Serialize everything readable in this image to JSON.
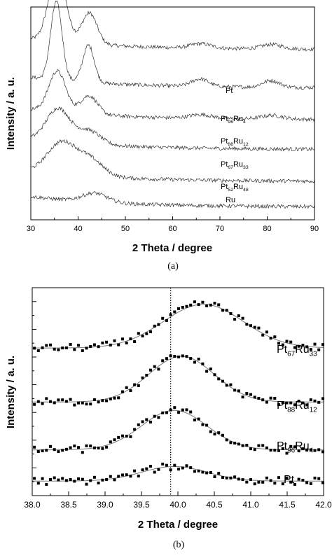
{
  "chart_data": [
    {
      "type": "line",
      "panel_label": "(a)",
      "xlabel": "2 Theta / degree",
      "ylabel": "Intensity / a. u.",
      "xlim": [
        30,
        90
      ],
      "xticks": [
        30,
        40,
        50,
        60,
        70,
        80,
        90
      ],
      "y_tick_labels": false,
      "series": [
        {
          "name": "Pt",
          "baseline": 0.8,
          "peaks": [
            [
              35.6,
              0.95,
              1.8
            ],
            [
              42.4,
              0.42,
              1.6
            ],
            [
              66.0,
              0.06,
              2.2
            ],
            [
              81.0,
              0.06,
              2.2
            ]
          ]
        },
        {
          "name": "Pt96Ru4",
          "baseline": 0.62,
          "peaks": [
            [
              35.4,
              1.05,
              1.2
            ],
            [
              42.2,
              0.5,
              1.2
            ],
            [
              65.8,
              0.1,
              1.8
            ],
            [
              80.8,
              0.09,
              1.8
            ]
          ]
        },
        {
          "name": "Pt88Ru12",
          "baseline": 0.47,
          "peaks": [
            [
              35.6,
              0.55,
              1.8
            ],
            [
              42.3,
              0.25,
              1.8
            ],
            [
              66.0,
              0.05,
              2.4
            ],
            [
              81.0,
              0.05,
              2.4
            ]
          ]
        },
        {
          "name": "Pt67Ru33",
          "baseline": 0.33,
          "peaks": [
            [
              35.8,
              0.45,
              2.5
            ],
            [
              42.3,
              0.18,
              2.4
            ]
          ]
        },
        {
          "name": "Pt52Ru48",
          "baseline": 0.18,
          "peaks": [
            [
              36.5,
              0.42,
              3.0
            ],
            [
              42.5,
              0.22,
              2.8
            ]
          ]
        },
        {
          "name": "Ru",
          "baseline": 0.06,
          "peaks": [
            [
              43.5,
              0.12,
              2.6
            ]
          ]
        }
      ]
    },
    {
      "type": "scatter",
      "panel_label": "(b)",
      "xlabel": "2 Theta / degree",
      "ylabel": "Intensity / a. u.",
      "xlim": [
        38.0,
        42.0
      ],
      "xticks": [
        "38.0",
        "38.5",
        "39.0",
        "39.5",
        "40.0",
        "40.5",
        "41.0",
        "41.5",
        "42.0"
      ],
      "y_tick_labels": false,
      "reference_line_x": 39.9,
      "fit_curve": "gaussian",
      "series": [
        {
          "name": "Pt67Ru33",
          "baseline": 0.71,
          "peak_x": 40.35,
          "peak_height": 0.21,
          "peak_width": 0.55
        },
        {
          "name": "Pt88Ru12",
          "baseline": 0.45,
          "peak_x": 40.05,
          "peak_height": 0.22,
          "peak_width": 0.45
        },
        {
          "name": "Pt96Ru4",
          "baseline": 0.22,
          "peak_x": 39.95,
          "peak_height": 0.19,
          "peak_width": 0.45
        },
        {
          "name": "Pt",
          "baseline": 0.07,
          "peak_x": 39.95,
          "peak_height": 0.07,
          "peak_width": 0.45
        }
      ]
    }
  ]
}
